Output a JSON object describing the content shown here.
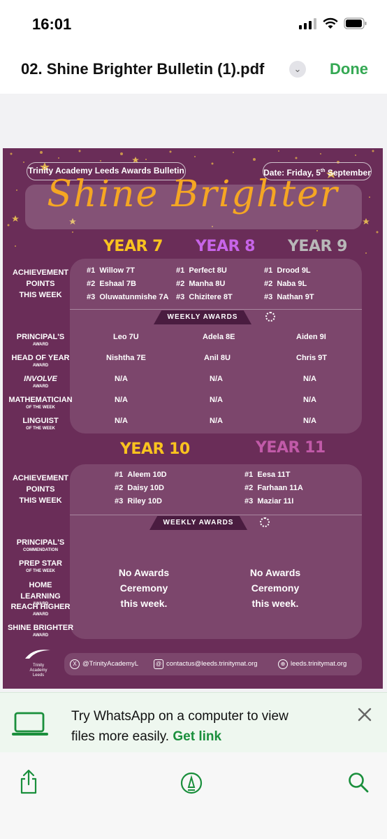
{
  "status_bar": {
    "time": "16:01"
  },
  "nav": {
    "title": "02. Shine Brighter Bulletin (1).pdf",
    "done_label": "Done"
  },
  "poster": {
    "school": "Trinity Academy Leeds Awards Bulletin",
    "date_label": "Date: Friday, 5",
    "date_sup": "th",
    "date_tail": " September",
    "title": "Shine Brighter",
    "colors": {
      "background": "#6a2d58",
      "year7": "#f9c31f",
      "year8": "#c764e8",
      "year9": "#b8b8b8",
      "year10": "#f9c31f",
      "year11": "#c15aa8",
      "title": "#f5a623"
    },
    "top": {
      "years": [
        "YEAR 7",
        "YEAR 8",
        "YEAR 9"
      ],
      "achievement_label": [
        "ACHIEVEMENT",
        "POINTS",
        "THIS WEEK"
      ],
      "achievement": [
        [
          {
            "rank": "#1",
            "name": "Willow 7T"
          },
          {
            "rank": "#2",
            "name": "Eshaal 7B"
          },
          {
            "rank": "#3",
            "name": "Oluwatunmishe 7A"
          }
        ],
        [
          {
            "rank": "#1",
            "name": "Perfect 8U"
          },
          {
            "rank": "#2",
            "name": "Manha 8U"
          },
          {
            "rank": "#3",
            "name": "Chizitere 8T"
          }
        ],
        [
          {
            "rank": "#1",
            "name": "Drood 9L"
          },
          {
            "rank": "#2",
            "name": "Naba 9L"
          },
          {
            "rank": "#3",
            "name": "Nathan 9T"
          }
        ]
      ],
      "weekly_awards": "WEEKLY AWARDS",
      "awards": [
        {
          "label": "PRINCIPAL'S",
          "sub": "AWARD",
          "italic": false,
          "values": [
            "Leo 7U",
            "Adela 8E",
            "Aiden 9I"
          ]
        },
        {
          "label": "HEAD OF YEAR",
          "sub": "AWARD",
          "italic": false,
          "values": [
            "Nishtha 7E",
            "Anil 8U",
            "Chris 9T"
          ]
        },
        {
          "label": "INVOLVE",
          "sub": "AWARD",
          "italic": true,
          "values": [
            "N/A",
            "N/A",
            "N/A"
          ]
        },
        {
          "label": "MATHEMATICIAN",
          "sub": "OF THE WEEK",
          "italic": false,
          "values": [
            "N/A",
            "N/A",
            "N/A"
          ]
        },
        {
          "label": "LINGUIST",
          "sub": "OF THE WEEK",
          "italic": false,
          "values": [
            "N/A",
            "N/A",
            "N/A"
          ]
        }
      ]
    },
    "bottom": {
      "years": [
        "YEAR 10",
        "YEAR 11"
      ],
      "achievement_label": [
        "ACHIEVEMENT",
        "POINTS",
        "THIS WEEK"
      ],
      "achievement": [
        [
          {
            "rank": "#1",
            "name": "Aleem 10D"
          },
          {
            "rank": "#2",
            "name": "Daisy 10D"
          },
          {
            "rank": "#3",
            "name": "Riley 10D"
          }
        ],
        [
          {
            "rank": "#1",
            "name": "Eesa 11T"
          },
          {
            "rank": "#2",
            "name": "Farhaan 11A"
          },
          {
            "rank": "#3",
            "name": "Maziar 11I"
          }
        ]
      ],
      "weekly_awards": "WEEKLY AWARDS",
      "award_labels": [
        {
          "label": "PRINCIPAL'S",
          "sub": "COMMENDATION"
        },
        {
          "label": "PREP STAR",
          "sub": "OF THE WEEK"
        },
        {
          "label": "HOME LEARNING",
          "sub": "AWARD"
        },
        {
          "label": "REACH HIGHER",
          "sub": "AWARD"
        },
        {
          "label": "SHINE BRIGHTER",
          "sub": "AWARD"
        }
      ],
      "no_awards": [
        "No Awards",
        "Ceremony",
        "this week."
      ]
    },
    "footer": {
      "logo_text": [
        "Trinity",
        "Academy",
        "Leeds"
      ],
      "twitter": "@TrinityAcademyL",
      "email": "contactus@leeds.trinitymat.org",
      "web": "leeds.trinitymat.org"
    }
  },
  "whatsapp_banner": {
    "line1": "Try WhatsApp on a computer to view",
    "line2": "files more easily.",
    "link": "Get link"
  },
  "toolbar": {
    "icons": [
      "share-icon",
      "markup-icon",
      "search-icon"
    ]
  }
}
